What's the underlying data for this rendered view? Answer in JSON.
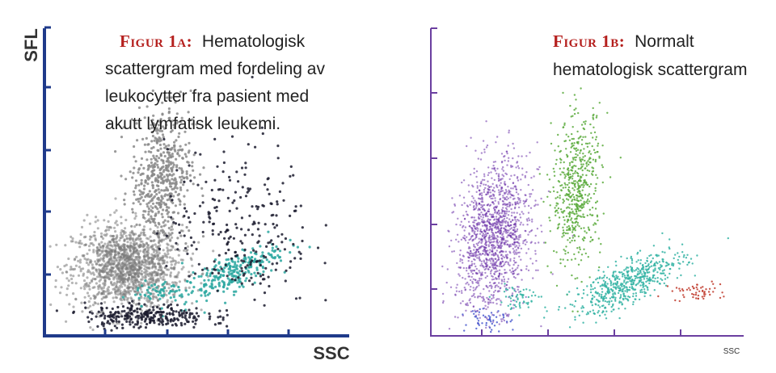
{
  "colors": {
    "axis_a": "#1f3a8a",
    "axis_b": "#6b3fa0",
    "caption_label": "#b5201e",
    "caption_text": "#222222"
  },
  "chart_data": [
    {
      "type": "scatter",
      "panel": "Figur 1A",
      "caption_label": "Figur 1a:",
      "caption_lines": [
        "Hematologisk",
        "scattergram med fordeling av",
        "leukocytter fra pasient med",
        "akutt lymfatisk leukemi."
      ],
      "xlabel": "SSC",
      "ylabel": "SFL",
      "xlim": [
        0,
        100
      ],
      "ylim": [
        0,
        100
      ],
      "grid": false,
      "clusters": [
        {
          "name": "",
          "color": "#7a7a7a",
          "shape": "blast body",
          "center": [
            27,
            22
          ],
          "spread": [
            9,
            7
          ],
          "density": "very high"
        },
        {
          "name": "",
          "color": "#8a8a8a",
          "shape": "diagonal tail",
          "center": [
            38,
            52
          ],
          "spread": [
            5,
            12
          ],
          "density": "high"
        },
        {
          "name": "",
          "color": "#2aa7a0",
          "shape": "ellipse",
          "center": [
            61,
            20
          ],
          "spread": [
            8,
            3
          ],
          "density": "medium"
        },
        {
          "name": "",
          "color": "#1b1b2e",
          "shape": "scattered",
          "center": [
            64,
            35
          ],
          "spread": [
            12,
            14
          ],
          "density": "medium"
        },
        {
          "name": "",
          "color": "#1b1b2e",
          "shape": "band",
          "center": [
            33,
            6
          ],
          "spread": [
            10,
            2
          ],
          "density": "medium"
        },
        {
          "name": "",
          "color": "#2aa7a0",
          "shape": "small",
          "center": [
            37,
            14
          ],
          "spread": [
            4,
            2
          ],
          "density": "low"
        }
      ]
    },
    {
      "type": "scatter",
      "panel": "Figur 1B",
      "caption_label": "Figur 1b:",
      "caption_lines": [
        "Normalt",
        "hematologisk scattergram"
      ],
      "xlabel": "SSC",
      "ylabel": "",
      "xlim": [
        0,
        100
      ],
      "ylim": [
        0,
        100
      ],
      "grid": false,
      "clusters": [
        {
          "name": "",
          "color": "#6a2fa8",
          "shape": "ellipse",
          "center": [
            20,
            32
          ],
          "spread": [
            6,
            12
          ],
          "density": "very high"
        },
        {
          "name": "",
          "color": "#5aaa3c",
          "shape": "ellipse",
          "center": [
            47,
            48
          ],
          "spread": [
            4,
            12
          ],
          "density": "high"
        },
        {
          "name": "",
          "color": "#33b3a3",
          "shape": "ellipse",
          "center": [
            64,
            17
          ],
          "spread": [
            9,
            3.5
          ],
          "density": "high"
        },
        {
          "name": "",
          "color": "#c0392b",
          "shape": "small",
          "center": [
            86,
            14
          ],
          "spread": [
            4,
            1.5
          ],
          "density": "low"
        },
        {
          "name": "",
          "color": "#33b3a3",
          "shape": "small",
          "center": [
            28,
            12
          ],
          "spread": [
            4,
            2
          ],
          "density": "low"
        },
        {
          "name": "",
          "color": "#4a5acf",
          "shape": "sparse",
          "center": [
            18,
            5
          ],
          "spread": [
            3,
            3
          ],
          "density": "low"
        }
      ]
    }
  ]
}
